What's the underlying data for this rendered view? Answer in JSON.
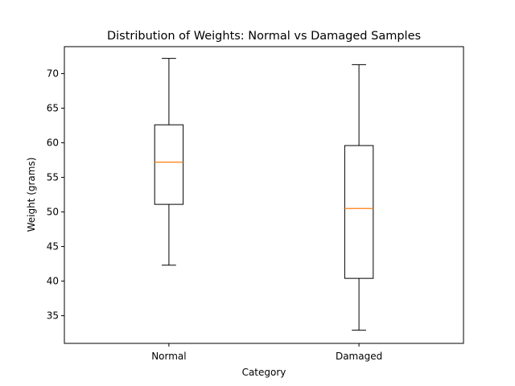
{
  "chart_data": {
    "type": "box",
    "title": "Distribution of Weights: Normal vs Damaged Samples",
    "xlabel": "Category",
    "ylabel": "Weight (grams)",
    "categories": [
      "Normal",
      "Damaged"
    ],
    "boxes": [
      {
        "name": "Normal",
        "whisker_low": 42.3,
        "q1": 51.1,
        "median": 57.2,
        "q3": 62.6,
        "whisker_high": 72.2
      },
      {
        "name": "Damaged",
        "whisker_low": 32.9,
        "q1": 40.4,
        "median": 50.5,
        "q3": 59.6,
        "whisker_high": 71.3
      }
    ],
    "ylim": [
      31.0,
      73.9
    ],
    "yticks": [
      35,
      40,
      45,
      50,
      55,
      60,
      65,
      70
    ],
    "grid": false,
    "colors": {
      "box": "#000000",
      "median": "#ff7f0e",
      "background": "#ffffff"
    }
  }
}
